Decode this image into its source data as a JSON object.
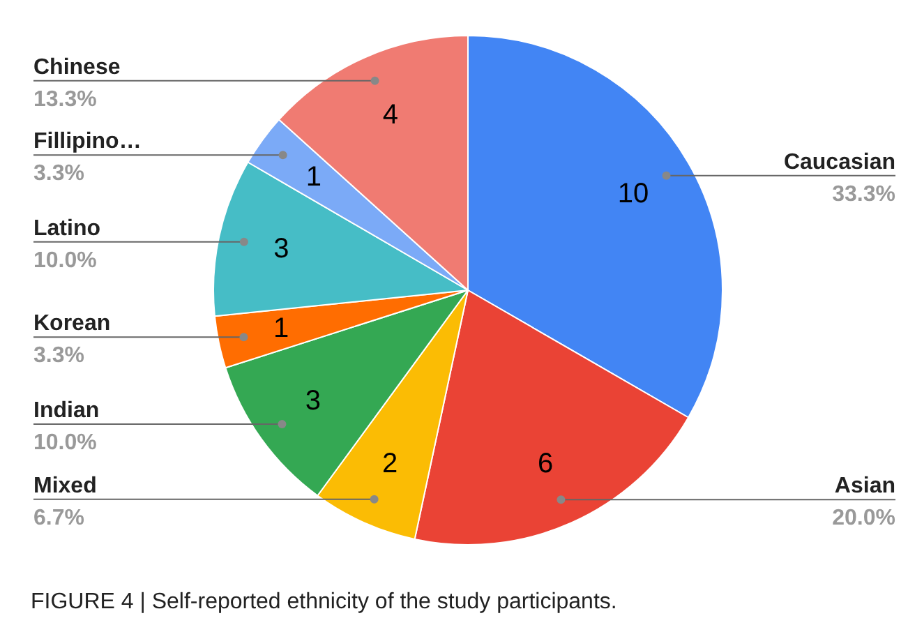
{
  "chart_data": {
    "type": "pie",
    "categories": [
      "Caucasian",
      "Asian",
      "Mixed",
      "Indian",
      "Korean",
      "Latino",
      "Fillipino…",
      "Chinese"
    ],
    "values": [
      33.3,
      20.0,
      6.7,
      10.0,
      3.3,
      10.0,
      3.3,
      13.3
    ],
    "colors": [
      "#4285f4",
      "#ea4335",
      "#fbbc04",
      "#34a853",
      "#ff6d01",
      "#46bdc6",
      "#7baaf7",
      "#f07b72"
    ],
    "value_labels": [
      "33.3%",
      "20.0%",
      "6.7%",
      "10.0%",
      "3.3%",
      "10.0%",
      "3.3%",
      "13.3%"
    ],
    "annotations": [
      {
        "text": "10",
        "x": "Caucasian"
      },
      {
        "text": "6",
        "x": "Asian"
      },
      {
        "text": "2",
        "x": "Mixed"
      },
      {
        "text": "3",
        "x": "Indian"
      },
      {
        "text": "1",
        "x": "Korean"
      },
      {
        "text": "3",
        "x": "Latino"
      },
      {
        "text": "1",
        "x": "Fillipino…"
      },
      {
        "text": "4",
        "x": "Chinese"
      },
      "FIGURE 4 | Self-reported ethnicity of the study participants."
    ]
  }
}
